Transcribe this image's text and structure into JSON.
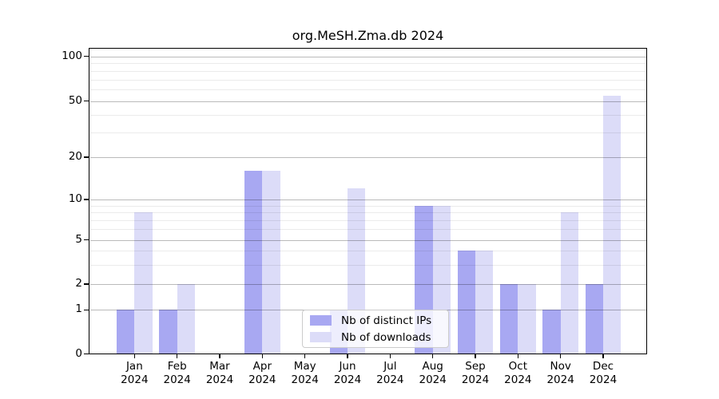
{
  "chart_data": {
    "type": "bar",
    "title": "org.MeSH.Zma.db 2024",
    "categories": [
      "Jan\n2024",
      "Feb\n2024",
      "Mar\n2024",
      "Apr\n2024",
      "May\n2024",
      "Jun\n2024",
      "Jul\n2024",
      "Aug\n2024",
      "Sep\n2024",
      "Oct\n2024",
      "Nov\n2024",
      "Dec\n2024"
    ],
    "series": [
      {
        "name": "Nb of distinct IPs",
        "color": "#a8a8f2",
        "values": [
          1,
          1,
          0,
          16,
          0,
          1,
          0,
          9,
          4,
          2,
          1,
          2
        ]
      },
      {
        "name": "Nb of downloads",
        "color": "#dcdcf8",
        "values": [
          8,
          2,
          0,
          16,
          0,
          12,
          0,
          9,
          4,
          2,
          8,
          54
        ]
      }
    ],
    "yscale": "log-like (0 baseline, log spacing above 1)",
    "yticks": [
      0,
      1,
      2,
      5,
      10,
      20,
      50,
      100
    ],
    "minor_yticks": [
      3,
      4,
      6,
      7,
      8,
      9,
      30,
      40,
      60,
      70,
      80,
      90
    ],
    "ylim": [
      0,
      110
    ],
    "xlabel": "",
    "ylabel": "",
    "grid": "horizontal",
    "legend_position": "lower center"
  }
}
